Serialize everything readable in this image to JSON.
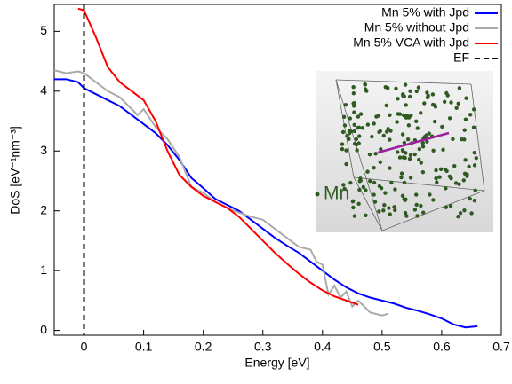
{
  "chart_data": {
    "type": "line",
    "xlabel": "Energy [eV]",
    "ylabel": "DoS [eV⁻¹nm⁻³]",
    "xlim": [
      -0.05,
      0.7
    ],
    "ylim": [
      -0.08,
      5.45
    ],
    "xticks": [
      0,
      0.1,
      0.2,
      0.3,
      0.4,
      0.5,
      0.6,
      0.7
    ],
    "yticks": [
      0,
      1,
      2,
      3,
      4,
      5
    ],
    "legend": "upper right",
    "series": [
      {
        "name": "Mn 5% with Jpd",
        "color": "#0000ff",
        "x": [
          -0.05,
          -0.03,
          -0.01,
          0,
          0.02,
          0.04,
          0.06,
          0.08,
          0.1,
          0.12,
          0.14,
          0.16,
          0.18,
          0.2,
          0.22,
          0.24,
          0.26,
          0.28,
          0.3,
          0.32,
          0.34,
          0.36,
          0.38,
          0.4,
          0.42,
          0.44,
          0.46,
          0.48,
          0.5,
          0.52,
          0.54,
          0.56,
          0.58,
          0.6,
          0.62,
          0.64,
          0.66
        ],
        "values": [
          4.2,
          4.2,
          4.15,
          4.05,
          3.95,
          3.85,
          3.75,
          3.6,
          3.45,
          3.3,
          3.1,
          2.85,
          2.55,
          2.38,
          2.2,
          2.1,
          2.0,
          1.85,
          1.7,
          1.55,
          1.42,
          1.3,
          1.15,
          1.0,
          0.85,
          0.72,
          0.62,
          0.55,
          0.5,
          0.45,
          0.38,
          0.33,
          0.27,
          0.2,
          0.1,
          0.05,
          0.07
        ]
      },
      {
        "name": "Mn 5% without Jpd",
        "color": "#aaaaaa",
        "x": [
          -0.05,
          -0.03,
          -0.01,
          0,
          0.02,
          0.04,
          0.06,
          0.08,
          0.09,
          0.1,
          0.12,
          0.14,
          0.16,
          0.18,
          0.2,
          0.22,
          0.24,
          0.26,
          0.28,
          0.3,
          0.32,
          0.34,
          0.36,
          0.38,
          0.39,
          0.4,
          0.41,
          0.42,
          0.43,
          0.44,
          0.45,
          0.46,
          0.48,
          0.5,
          0.51
        ],
        "values": [
          4.35,
          4.3,
          4.33,
          4.3,
          4.15,
          4.0,
          3.9,
          3.7,
          3.6,
          3.7,
          3.4,
          3.2,
          2.9,
          2.4,
          2.3,
          2.15,
          2.05,
          1.97,
          1.9,
          1.85,
          1.7,
          1.55,
          1.4,
          1.35,
          1.15,
          1.1,
          0.6,
          0.75,
          0.55,
          0.65,
          0.4,
          0.5,
          0.3,
          0.25,
          0.28
        ]
      },
      {
        "name": "Mn 5% VCA with Jpd",
        "color": "#ff0000",
        "x": [
          -0.01,
          0,
          0.02,
          0.04,
          0.06,
          0.08,
          0.1,
          0.12,
          0.14,
          0.16,
          0.18,
          0.2,
          0.22,
          0.24,
          0.26,
          0.28,
          0.3,
          0.32,
          0.34,
          0.36,
          0.38,
          0.4,
          0.42,
          0.44,
          0.46
        ],
        "values": [
          5.38,
          5.35,
          4.9,
          4.4,
          4.15,
          4.0,
          3.85,
          3.5,
          3.0,
          2.6,
          2.4,
          2.25,
          2.15,
          2.05,
          1.9,
          1.7,
          1.5,
          1.3,
          1.12,
          0.95,
          0.8,
          0.67,
          0.57,
          0.5,
          0.43
        ]
      }
    ],
    "vlines": [
      {
        "name": "EF",
        "x": 0,
        "color": "#000000"
      }
    ],
    "inset_label": "Mn"
  }
}
